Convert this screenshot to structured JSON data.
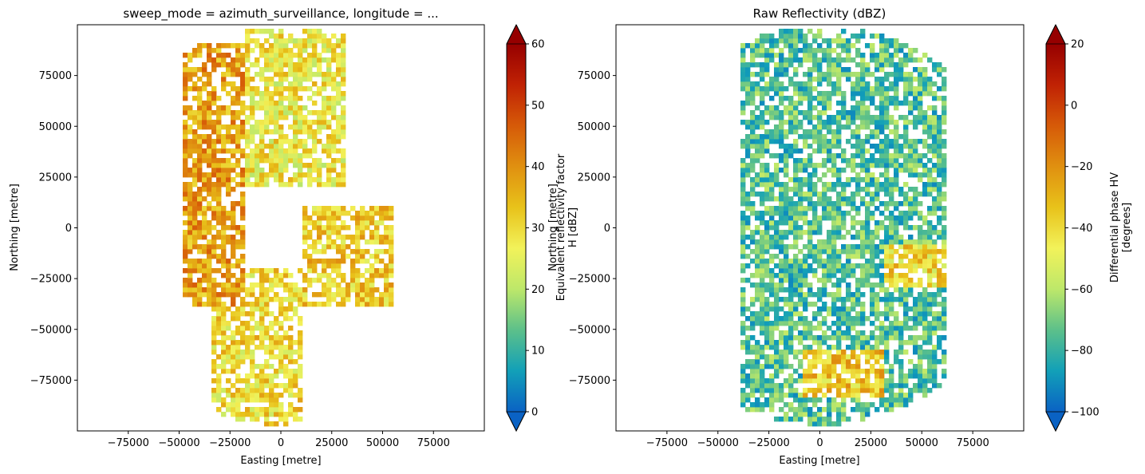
{
  "figure": {
    "panels": [
      {
        "title": "sweep_mode = azimuth_surveillance, longitude = ...",
        "xlabel": "Easting [metre]",
        "ylabel": "Northing [metre]",
        "colorbar_label": [
          "Equivalent reflectivity factor",
          "H [dBZ]"
        ],
        "overlapping_label": [
          "Northing [metre]"
        ]
      },
      {
        "title": "Raw Reflectivity (dBZ)",
        "xlabel": "Easting [metre]",
        "ylabel": "Northing [metre]",
        "colorbar_label": [
          "Differential phase HV",
          "[degrees]"
        ]
      }
    ]
  },
  "chart_data": [
    {
      "type": "heatmap",
      "title": "sweep_mode = azimuth_surveillance, longitude = ...",
      "xlabel": "Easting [metre]",
      "ylabel": "Northing [metre]",
      "xlim": [
        -100000,
        100000
      ],
      "ylim": [
        -100000,
        100000
      ],
      "xticks": [
        -75000,
        -50000,
        -25000,
        0,
        25000,
        50000,
        75000
      ],
      "yticks": [
        -75000,
        -50000,
        -25000,
        0,
        25000,
        50000,
        75000
      ],
      "grid": false,
      "colorbar": {
        "label": "Equivalent reflectivity factor H [dBZ]",
        "range": [
          0,
          60
        ],
        "ticks": [
          0,
          10,
          20,
          30,
          40,
          50,
          60
        ],
        "extend": "both",
        "colormap": "HomeyerRainbow",
        "colors": [
          "#0a62c4",
          "#12a0b8",
          "#5cc08a",
          "#bde86a",
          "#f2f25a",
          "#e8c21a",
          "#e09010",
          "#d65a08",
          "#c02204",
          "#960000"
        ]
      },
      "description_note": null,
      "regions": [
        {
          "id": "north-band",
          "x": [
            -20000,
            30000
          ],
          "y": [
            20000,
            98000
          ],
          "mean_value": 28
        },
        {
          "id": "south-band",
          "x": [
            -35000,
            10000
          ],
          "y": [
            -98000,
            -20000
          ],
          "mean_value": 30
        },
        {
          "id": "east-cells",
          "x": [
            10000,
            55000
          ],
          "y": [
            -40000,
            10000
          ],
          "mean_value": 32
        },
        {
          "id": "west-cells",
          "x": [
            -50000,
            -20000
          ],
          "y": [
            -40000,
            90000
          ],
          "mean_value": 38
        }
      ]
    },
    {
      "type": "heatmap",
      "title": "Raw Reflectivity (dBZ)",
      "xlabel": "Easting [metre]",
      "ylabel": "Northing [metre]",
      "xlim": [
        -100000,
        100000
      ],
      "ylim": [
        -100000,
        100000
      ],
      "xticks": [
        -75000,
        -50000,
        -25000,
        0,
        25000,
        50000,
        75000
      ],
      "yticks": [
        -75000,
        -50000,
        -25000,
        0,
        25000,
        50000,
        75000
      ],
      "grid": false,
      "colorbar": {
        "label": "Differential phase HV [degrees]",
        "range": [
          -100,
          20
        ],
        "ticks": [
          -100,
          -80,
          -60,
          -40,
          -20,
          0,
          20
        ],
        "extend": "both",
        "colormap": "HomeyerRainbow",
        "colors": [
          "#0a62c4",
          "#12a0b8",
          "#5cc08a",
          "#bde86a",
          "#f2f25a",
          "#e8c21a",
          "#e09010",
          "#d65a08",
          "#c02204",
          "#960000"
        ]
      },
      "regions": [
        {
          "id": "broad-field",
          "x": [
            -40000,
            60000
          ],
          "y": [
            -98000,
            98000
          ],
          "mean_value": -75
        },
        {
          "id": "south-edge",
          "x": [
            -10000,
            30000
          ],
          "y": [
            -85000,
            -60000
          ],
          "mean_value": -35
        },
        {
          "id": "east-edge",
          "x": [
            30000,
            60000
          ],
          "y": [
            -30000,
            -10000
          ],
          "mean_value": -40
        }
      ]
    }
  ]
}
